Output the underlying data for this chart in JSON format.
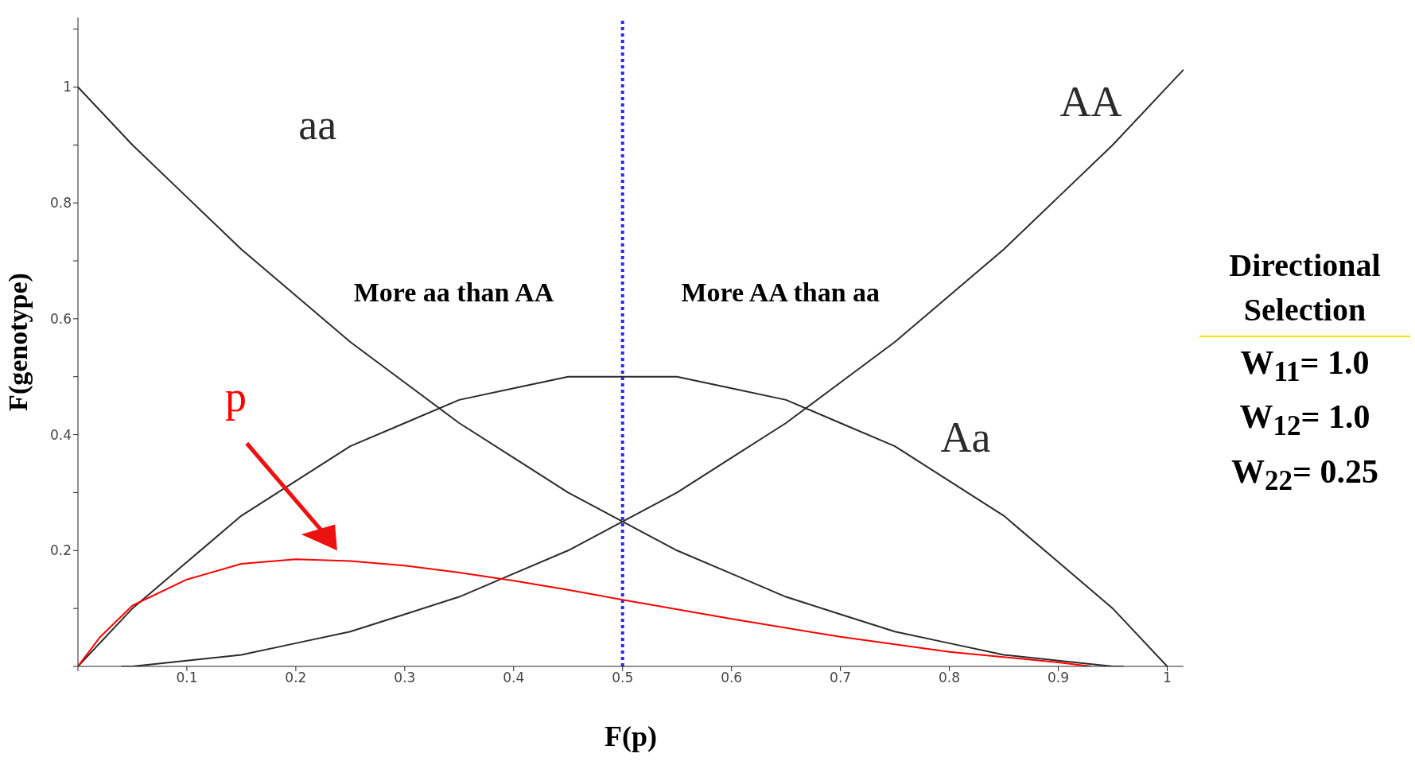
{
  "chart_data": {
    "type": "line",
    "xlabel": "F(p)",
    "ylabel": "F(genotype)",
    "xlim": [
      0,
      1.015
    ],
    "ylim": [
      0,
      1.12
    ],
    "xticks": [
      {
        "value": 0,
        "label": null
      },
      0.1,
      0.2,
      0.3,
      0.4,
      0.5,
      0.6,
      0.7,
      0.8,
      0.9,
      1
    ],
    "yticks": [
      {
        "value": 0,
        "label": null
      },
      {
        "value": 0.1,
        "label": null
      },
      0.2,
      {
        "value": 0.3,
        "label": null
      },
      0.4,
      {
        "value": 0.5,
        "label": null
      },
      0.6,
      {
        "value": 0.7,
        "label": null
      },
      0.8,
      {
        "value": 0.9,
        "label": null
      },
      1,
      {
        "value": 1.1,
        "label": null
      }
    ],
    "grid": false,
    "legend": false,
    "marker": "none",
    "line_style": "solid",
    "series": [
      {
        "name": "aa",
        "color": "#2b2b2b",
        "x": [
          0,
          0.05,
          0.1,
          0.15,
          0.2,
          0.25,
          0.3,
          0.35,
          0.4,
          0.45,
          0.5,
          0.55,
          0.6,
          0.65,
          0.7,
          0.75,
          0.8,
          0.85,
          0.9,
          0.95,
          0.96
        ],
        "values": [
          1,
          0.9,
          0.81,
          0.72,
          0.64,
          0.56,
          0.49,
          0.42,
          0.36,
          0.3,
          0.25,
          0.2,
          0.16,
          0.12,
          0.09,
          0.06,
          0.04,
          0.02,
          0.01,
          0,
          0
        ]
      },
      {
        "name": "Aa",
        "color": "#2b2b2b",
        "x": [
          0,
          0.05,
          0.1,
          0.15,
          0.2,
          0.25,
          0.3,
          0.35,
          0.4,
          0.45,
          0.5,
          0.55,
          0.6,
          0.65,
          0.7,
          0.75,
          0.8,
          0.85,
          0.9,
          0.95,
          1
        ],
        "values": [
          0,
          0.1,
          0.18,
          0.26,
          0.32,
          0.38,
          0.42,
          0.46,
          0.48,
          0.5,
          0.5,
          0.5,
          0.48,
          0.46,
          0.42,
          0.38,
          0.32,
          0.26,
          0.18,
          0.1,
          0
        ]
      },
      {
        "name": "AA",
        "color": "#2b2b2b",
        "x": [
          0.04,
          0.05,
          0.1,
          0.15,
          0.2,
          0.25,
          0.3,
          0.35,
          0.4,
          0.45,
          0.5,
          0.55,
          0.6,
          0.65,
          0.7,
          0.75,
          0.8,
          0.85,
          0.9,
          0.95,
          1,
          1.015
        ],
        "values": [
          0,
          0,
          0.01,
          0.02,
          0.04,
          0.06,
          0.09,
          0.12,
          0.16,
          0.2,
          0.25,
          0.3,
          0.36,
          0.42,
          0.49,
          0.56,
          0.64,
          0.72,
          0.81,
          0.9,
          1,
          1.03
        ]
      },
      {
        "name": "p",
        "color": "#ff0000",
        "x": [
          0,
          0.02,
          0.05,
          0.1,
          0.15,
          0.2,
          0.25,
          0.3,
          0.35,
          0.4,
          0.45,
          0.5,
          0.6,
          0.7,
          0.8,
          0.9,
          0.93
        ],
        "values": [
          0,
          0.05,
          0.105,
          0.15,
          0.177,
          0.185,
          0.182,
          0.174,
          0.162,
          0.148,
          0.132,
          0.115,
          0.082,
          0.051,
          0.025,
          0.007,
          0
        ]
      }
    ],
    "ref_lines": [
      {
        "axis": "x",
        "value": 0.5,
        "color": "#2a2ae0",
        "line_style": "dotted"
      }
    ],
    "annotations": [
      "More aa than AA",
      "More AA than aa",
      "Directional Selection",
      "W$_{11}$= 1.0",
      "W$_{12}$= 1.0",
      "W$_{22}$= 0.25"
    ]
  }
}
